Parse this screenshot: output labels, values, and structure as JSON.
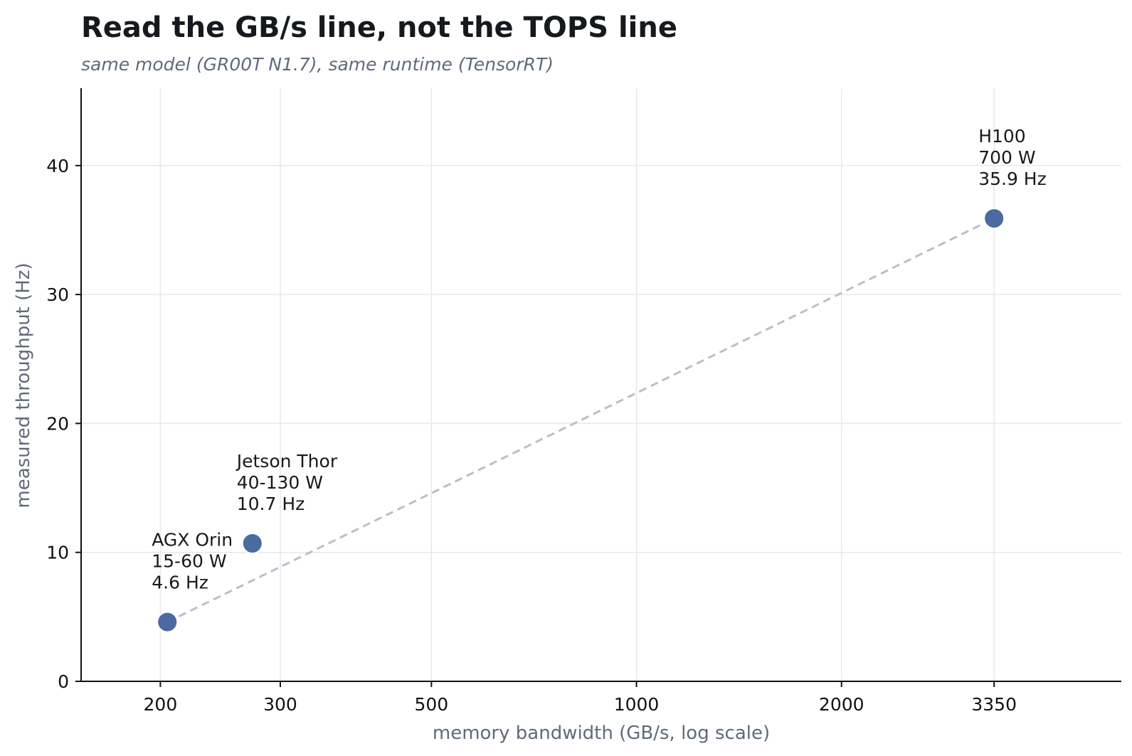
{
  "chart_data": {
    "type": "scatter",
    "title": "Read the GB/s line, not the TOPS line",
    "subtitle": "same model (GR00T N1.7), same runtime (TensorRT)",
    "xlabel": "memory bandwidth (GB/s, log scale)",
    "ylabel": "measured throughput (Hz)",
    "x_scale": "log",
    "xlim": [
      153,
      5150
    ],
    "ylim": [
      0,
      46
    ],
    "x_ticks": [
      200,
      300,
      500,
      1000,
      2000,
      3350
    ],
    "y_ticks": [
      0,
      10,
      20,
      30,
      40
    ],
    "grid": true,
    "legend": "none",
    "trend_line": "dashed",
    "point_color": "#4a6aa0",
    "trend_color": "#b9c0ca",
    "points": [
      {
        "x": 204.8,
        "y": 4.6,
        "lines": [
          "AGX Orin",
          "15-60 W",
          "4.6 Hz"
        ]
      },
      {
        "x": 273,
        "y": 10.7,
        "lines": [
          "Jetson Thor",
          "40-130 W",
          "10.7 Hz"
        ]
      },
      {
        "x": 3350,
        "y": 35.9,
        "lines": [
          "H100",
          "700 W",
          "35.9 Hz"
        ]
      }
    ]
  }
}
